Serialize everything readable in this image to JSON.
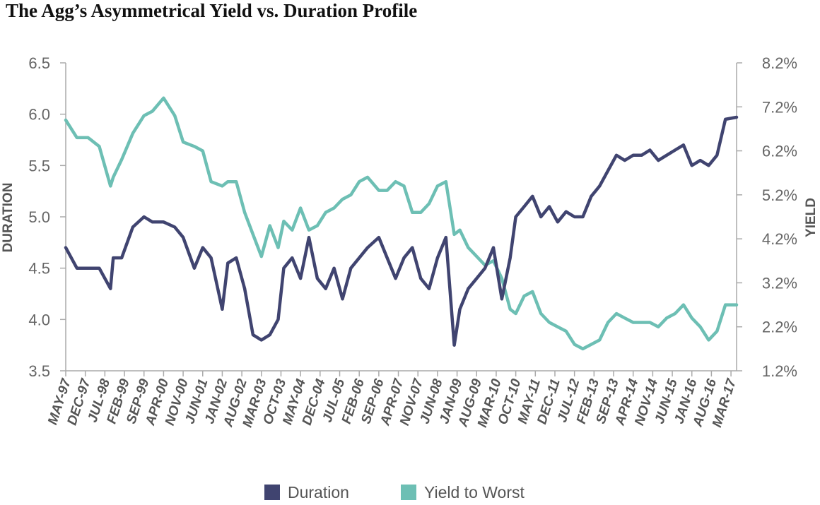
{
  "chart_data": {
    "type": "line",
    "title": "The Agg’s Asymmetrical Yield vs. Duration Profile",
    "ylabel": "DURATION",
    "y2label": "YIELD",
    "ylim": [
      3.5,
      6.5
    ],
    "y2lim": [
      1.2,
      8.2
    ],
    "yticks": [
      "3.5",
      "4.0",
      "4.5",
      "5.0",
      "5.5",
      "6.0",
      "6.5"
    ],
    "y2ticks": [
      "1.2%",
      "2.2%",
      "3.2%",
      "4.2%",
      "5.2%",
      "6.2%",
      "7.2%",
      "8.2%"
    ],
    "x_tick_labels": [
      "MAY-97",
      "DEC-97",
      "JUL-98",
      "FEB-99",
      "SEP-99",
      "APR-00",
      "NOV-00",
      "JUN-01",
      "JAN-02",
      "AUG-02",
      "MAR-03",
      "OCT-03",
      "MAY-04",
      "DEC-04",
      "JUL-05",
      "FEB-06",
      "SEP-06",
      "APR-07",
      "NOV-07",
      "JUN-08",
      "JAN-09",
      "AUG-09",
      "MAR-10",
      "OCT-10",
      "MAY-11",
      "DEC-11",
      "JUL-12",
      "FEB-13",
      "SEP-13",
      "APR-14",
      "NOV-14",
      "JUN-15",
      "JAN-16",
      "AUG-16",
      "MAR-17"
    ],
    "x_start": "1997-05",
    "x_end": "2017-05",
    "legend_position": "bottom-center",
    "colors": {
      "duration": "#404470",
      "yield": "#6dbfb4",
      "axis": "#aaaaaa"
    },
    "series": [
      {
        "name": "Duration",
        "axis": "left",
        "x": [
          "1997-05",
          "1997-09",
          "1998-01",
          "1998-05",
          "1998-09",
          "1998-10",
          "1999-01",
          "1999-05",
          "1999-09",
          "1999-12",
          "2000-04",
          "2000-08",
          "2000-11",
          "2001-03",
          "2001-06",
          "2001-09",
          "2002-01",
          "2002-03",
          "2002-06",
          "2002-09",
          "2002-12",
          "2003-03",
          "2003-06",
          "2003-09",
          "2003-11",
          "2004-02",
          "2004-05",
          "2004-08",
          "2004-11",
          "2005-02",
          "2005-05",
          "2005-08",
          "2005-11",
          "2006-02",
          "2006-05",
          "2006-09",
          "2006-12",
          "2007-03",
          "2007-06",
          "2007-09",
          "2007-12",
          "2008-03",
          "2008-06",
          "2008-09",
          "2008-12",
          "2009-02",
          "2009-05",
          "2009-08",
          "2009-11",
          "2010-02",
          "2010-05",
          "2010-08",
          "2010-10",
          "2011-01",
          "2011-04",
          "2011-07",
          "2011-10",
          "2012-01",
          "2012-04",
          "2012-07",
          "2012-10",
          "2013-01",
          "2013-04",
          "2013-07",
          "2013-10",
          "2014-01",
          "2014-04",
          "2014-07",
          "2014-10",
          "2015-01",
          "2015-04",
          "2015-07",
          "2015-10",
          "2016-01",
          "2016-04",
          "2016-07",
          "2016-10",
          "2017-01",
          "2017-05"
        ],
        "values": [
          4.7,
          4.5,
          4.5,
          4.5,
          4.3,
          4.6,
          4.6,
          4.9,
          5.0,
          4.95,
          4.95,
          4.9,
          4.8,
          4.5,
          4.7,
          4.6,
          4.1,
          4.55,
          4.6,
          4.3,
          3.85,
          3.8,
          3.85,
          4.0,
          4.5,
          4.6,
          4.4,
          4.8,
          4.4,
          4.3,
          4.5,
          4.2,
          4.5,
          4.6,
          4.7,
          4.8,
          4.6,
          4.4,
          4.6,
          4.7,
          4.4,
          4.3,
          4.6,
          4.8,
          3.75,
          4.1,
          4.3,
          4.4,
          4.5,
          4.7,
          4.2,
          4.6,
          5.0,
          5.1,
          5.2,
          5.0,
          5.1,
          4.95,
          5.05,
          5.0,
          5.0,
          5.2,
          5.3,
          5.45,
          5.6,
          5.55,
          5.6,
          5.6,
          5.65,
          5.55,
          5.6,
          5.65,
          5.7,
          5.5,
          5.55,
          5.5,
          5.6,
          5.95,
          5.97
        ]
      },
      {
        "name": "Yield to Worst",
        "axis": "right",
        "x": [
          "1997-05",
          "1997-09",
          "1998-01",
          "1998-05",
          "1998-09",
          "1998-10",
          "1999-01",
          "1999-05",
          "1999-09",
          "1999-12",
          "2000-04",
          "2000-08",
          "2000-11",
          "2001-03",
          "2001-06",
          "2001-09",
          "2002-01",
          "2002-03",
          "2002-06",
          "2002-09",
          "2002-12",
          "2003-03",
          "2003-06",
          "2003-09",
          "2003-11",
          "2004-02",
          "2004-05",
          "2004-08",
          "2004-11",
          "2005-02",
          "2005-05",
          "2005-08",
          "2005-11",
          "2006-02",
          "2006-05",
          "2006-09",
          "2006-12",
          "2007-03",
          "2007-06",
          "2007-09",
          "2007-12",
          "2008-03",
          "2008-06",
          "2008-09",
          "2008-12",
          "2009-02",
          "2009-05",
          "2009-08",
          "2009-11",
          "2010-02",
          "2010-05",
          "2010-08",
          "2010-10",
          "2011-01",
          "2011-04",
          "2011-07",
          "2011-10",
          "2012-01",
          "2012-04",
          "2012-07",
          "2012-10",
          "2013-01",
          "2013-04",
          "2013-07",
          "2013-10",
          "2014-01",
          "2014-04",
          "2014-07",
          "2014-10",
          "2015-01",
          "2015-04",
          "2015-07",
          "2015-10",
          "2016-01",
          "2016-04",
          "2016-07",
          "2016-10",
          "2017-01",
          "2017-05"
        ],
        "values": [
          6.9,
          6.5,
          6.5,
          6.3,
          5.4,
          5.6,
          6.0,
          6.6,
          7.0,
          7.1,
          7.4,
          7.0,
          6.4,
          6.3,
          6.2,
          5.5,
          5.4,
          5.5,
          5.5,
          4.8,
          4.3,
          3.8,
          4.5,
          4.0,
          4.6,
          4.4,
          4.9,
          4.4,
          4.5,
          4.8,
          4.9,
          5.1,
          5.2,
          5.5,
          5.6,
          5.3,
          5.3,
          5.5,
          5.4,
          4.8,
          4.8,
          5.0,
          5.4,
          5.5,
          4.3,
          4.4,
          4.0,
          3.8,
          3.6,
          3.7,
          3.3,
          2.6,
          2.5,
          2.9,
          3.0,
          2.5,
          2.3,
          2.2,
          2.1,
          1.8,
          1.7,
          1.8,
          1.9,
          2.3,
          2.5,
          2.4,
          2.3,
          2.3,
          2.3,
          2.2,
          2.4,
          2.5,
          2.7,
          2.4,
          2.2,
          1.9,
          2.1,
          2.7,
          2.7
        ]
      }
    ]
  }
}
